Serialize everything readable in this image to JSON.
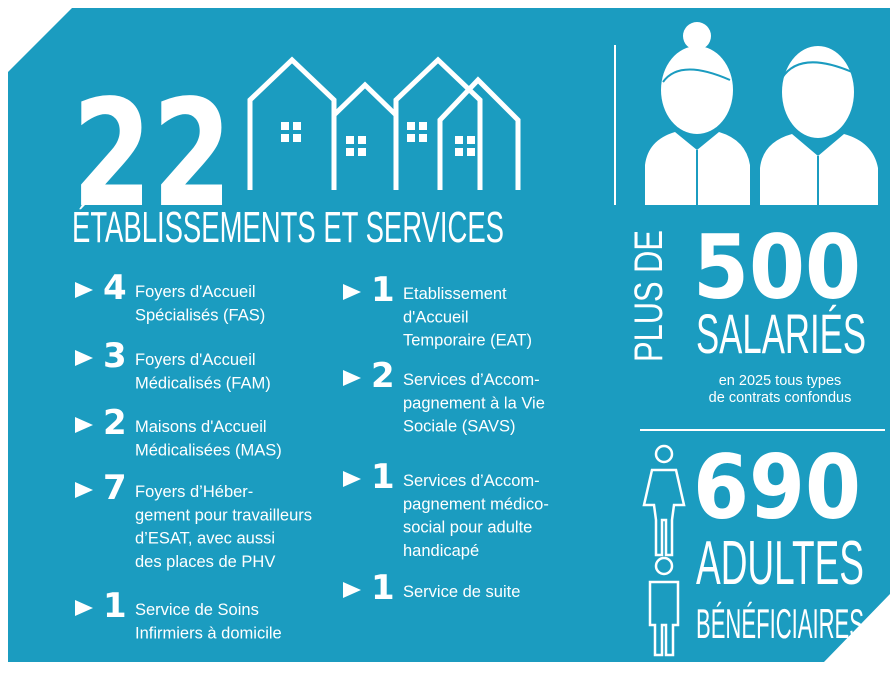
{
  "headline": {
    "number": "22",
    "label": "ÉTABLISSEMENTS ET SERVICES"
  },
  "services": [
    {
      "count": "4",
      "lines": [
        "Foyers d'Accueil",
        "Spécialisés (FAS)"
      ]
    },
    {
      "count": "3",
      "lines": [
        "Foyers d'Accueil",
        "Médicalisés (FAM)"
      ]
    },
    {
      "count": "2",
      "lines": [
        "Maisons d'Accueil",
        "Médicalisées (MAS)"
      ]
    },
    {
      "count": "7",
      "lines": [
        "Foyers d’Héber-",
        "gement pour travailleurs",
        "d’ESAT, avec aussi",
        "des places de PHV"
      ]
    },
    {
      "count": "1",
      "lines": [
        "Service de Soins",
        "Infirmiers à domicile"
      ]
    },
    {
      "count": "1",
      "lines": [
        "Etablissement",
        "d'Accueil",
        "Temporaire (EAT)"
      ]
    },
    {
      "count": "2",
      "lines": [
        "Services d’Accom-",
        "pagnement à la Vie",
        "Sociale (SAVS)"
      ]
    },
    {
      "count": "1",
      "lines": [
        "Services d’Accom-",
        "pagnement médico-",
        "social pour adulte",
        "handicapé"
      ]
    },
    {
      "count": "1",
      "lines": [
        "Service de suite"
      ]
    }
  ],
  "staff": {
    "prefix": "PLUS DE",
    "number": "500",
    "label": "SALARIÉS",
    "note": [
      "en 2025 tous types",
      "de contrats confondus"
    ]
  },
  "beneficiaries": {
    "number": "690",
    "label": "ADULTES",
    "sublabel": "BÉNÉFICIAIRES"
  }
}
